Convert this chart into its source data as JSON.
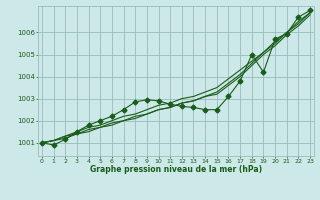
{
  "title": "Graphe pression niveau de la mer (hPa)",
  "background_color": "#cce8e8",
  "grid_color": "#99bbbb",
  "line_color": "#1a5c1a",
  "x_ticks": [
    0,
    1,
    2,
    3,
    4,
    5,
    6,
    7,
    8,
    9,
    10,
    11,
    12,
    13,
    14,
    15,
    16,
    17,
    18,
    19,
    20,
    21,
    22,
    23
  ],
  "y_ticks": [
    1001,
    1002,
    1003,
    1004,
    1005,
    1006
  ],
  "ylim": [
    1000.4,
    1007.2
  ],
  "xlim": [
    -0.3,
    23.3
  ],
  "series_linear": [
    [
      1001.0,
      1001.1,
      1001.3,
      1001.4,
      1001.6,
      1001.7,
      1001.9,
      1002.0,
      1002.2,
      1002.3,
      1002.5,
      1002.6,
      1002.8,
      1002.9,
      1003.1,
      1003.3,
      1003.7,
      1004.1,
      1004.6,
      1005.1,
      1005.5,
      1006.0,
      1006.4,
      1006.9
    ],
    [
      1001.0,
      1001.1,
      1001.3,
      1001.5,
      1001.7,
      1001.8,
      1002.0,
      1002.2,
      1002.3,
      1002.5,
      1002.7,
      1002.8,
      1003.0,
      1003.1,
      1003.3,
      1003.5,
      1003.9,
      1004.3,
      1004.7,
      1005.1,
      1005.6,
      1006.0,
      1006.5,
      1006.9
    ],
    [
      1001.0,
      1001.1,
      1001.2,
      1001.4,
      1001.5,
      1001.7,
      1001.8,
      1002.0,
      1002.1,
      1002.3,
      1002.5,
      1002.6,
      1002.8,
      1002.9,
      1003.1,
      1003.2,
      1003.6,
      1004.0,
      1004.5,
      1005.0,
      1005.4,
      1005.9,
      1006.3,
      1006.8
    ]
  ],
  "series_marker": [
    1001.0,
    1000.9,
    1001.15,
    1001.5,
    1001.8,
    1002.0,
    1002.2,
    1002.5,
    1002.85,
    1002.95,
    1002.9,
    1002.75,
    1002.65,
    1002.6,
    1002.5,
    1002.5,
    1003.1,
    1003.8,
    1005.0,
    1004.2,
    1005.7,
    1005.95,
    1006.7,
    1007.0
  ],
  "marker_style": "D",
  "marker_size": 2.5,
  "line_width": 0.8,
  "xlabel_fontsize": 5.5,
  "ytick_fontsize": 5,
  "xtick_fontsize": 4.5
}
